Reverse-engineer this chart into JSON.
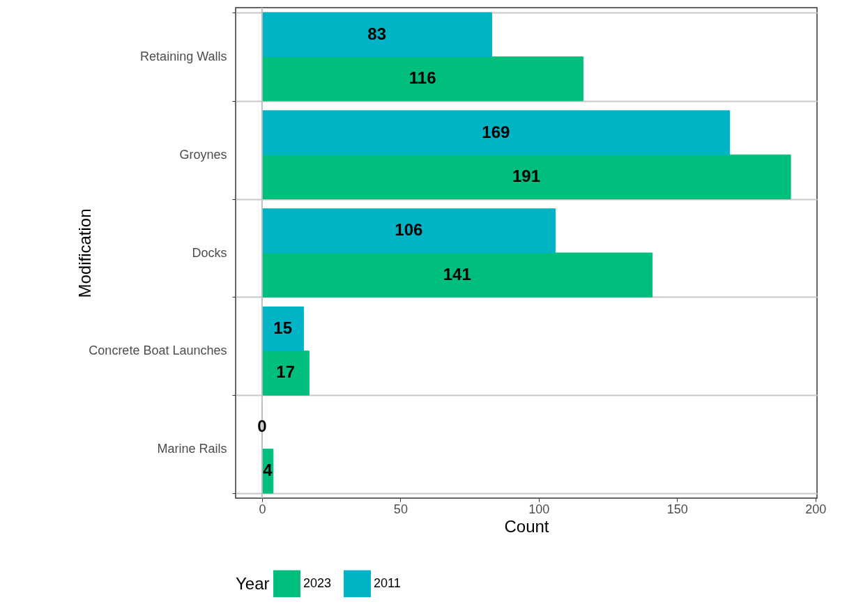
{
  "chart_data": {
    "type": "bar",
    "orientation": "horizontal",
    "categories": [
      "Retaining Walls",
      "Groynes",
      "Docks",
      "Concrete Boat Launches",
      "Marine Rails"
    ],
    "series": [
      {
        "name": "2023",
        "color": "#00bf7d",
        "values": [
          116,
          191,
          141,
          17,
          4
        ]
      },
      {
        "name": "2011",
        "color": "#00b4c5",
        "values": [
          83,
          169,
          106,
          15,
          0
        ]
      }
    ],
    "xlabel": "Count",
    "ylabel": "Modification",
    "legend_title": "Year",
    "legend": "bottom",
    "data_labels": true,
    "grid": "y",
    "xlim": [
      -9.55,
      200.55
    ],
    "xticks": [
      0,
      50,
      100,
      150,
      200
    ],
    "ref_lines": [
      {
        "axis": "x",
        "value": 0,
        "color": "#bebebe"
      }
    ]
  }
}
